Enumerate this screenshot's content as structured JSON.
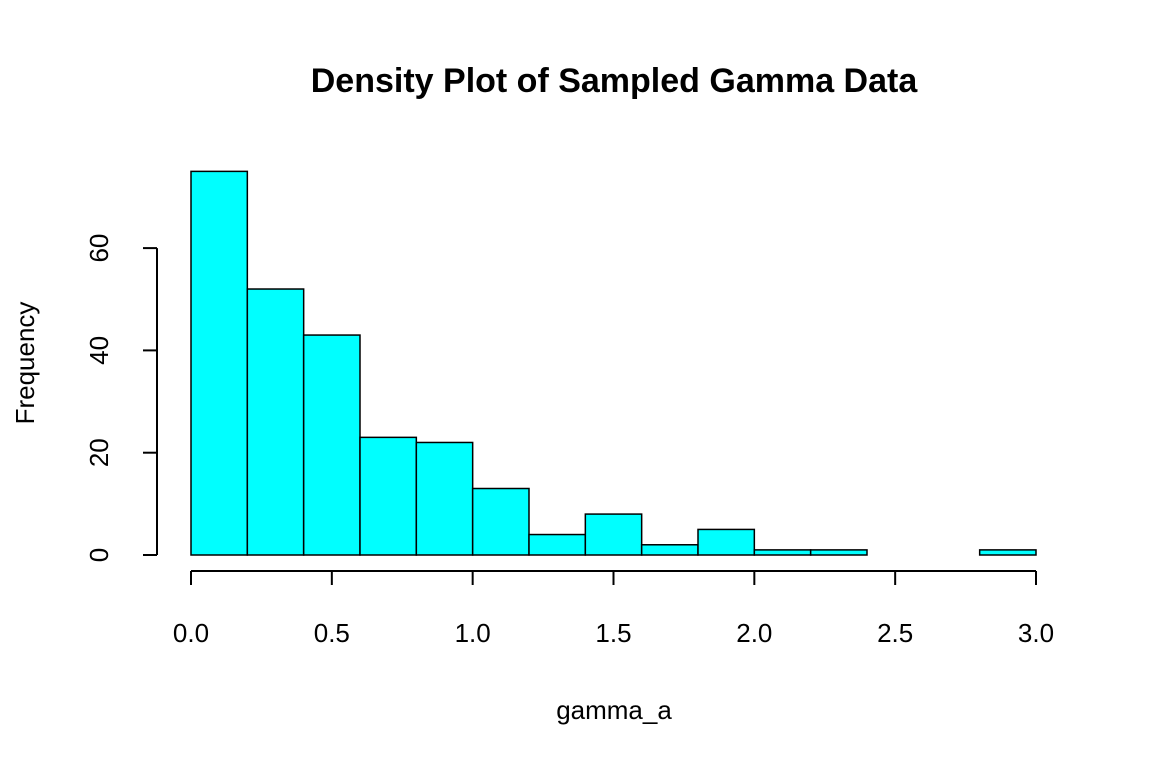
{
  "chart_data": {
    "type": "bar",
    "title": "Density Plot of Sampled Gamma Data",
    "xlabel": "gamma_a",
    "ylabel": "Frequency",
    "bin_edges": [
      0.0,
      0.2,
      0.4,
      0.6,
      0.8,
      1.0,
      1.2,
      1.4,
      1.6,
      1.8,
      2.0,
      2.2,
      2.4,
      2.6,
      2.8,
      3.0
    ],
    "values": [
      75,
      52,
      43,
      23,
      22,
      13,
      4,
      8,
      2,
      5,
      1,
      1,
      0,
      0,
      1
    ],
    "x_ticks": [
      "0.0",
      "0.5",
      "1.0",
      "1.5",
      "2.0",
      "2.5",
      "3.0"
    ],
    "x_tick_values": [
      0.0,
      0.5,
      1.0,
      1.5,
      2.0,
      2.5,
      3.0
    ],
    "y_ticks": [
      "0",
      "20",
      "40",
      "60"
    ],
    "y_tick_values": [
      0,
      20,
      40,
      60
    ],
    "xlim": [
      0.0,
      3.0
    ],
    "ylim": [
      0,
      75
    ],
    "bar_color": "#00FFFF",
    "grid": false,
    "legend": "none"
  }
}
